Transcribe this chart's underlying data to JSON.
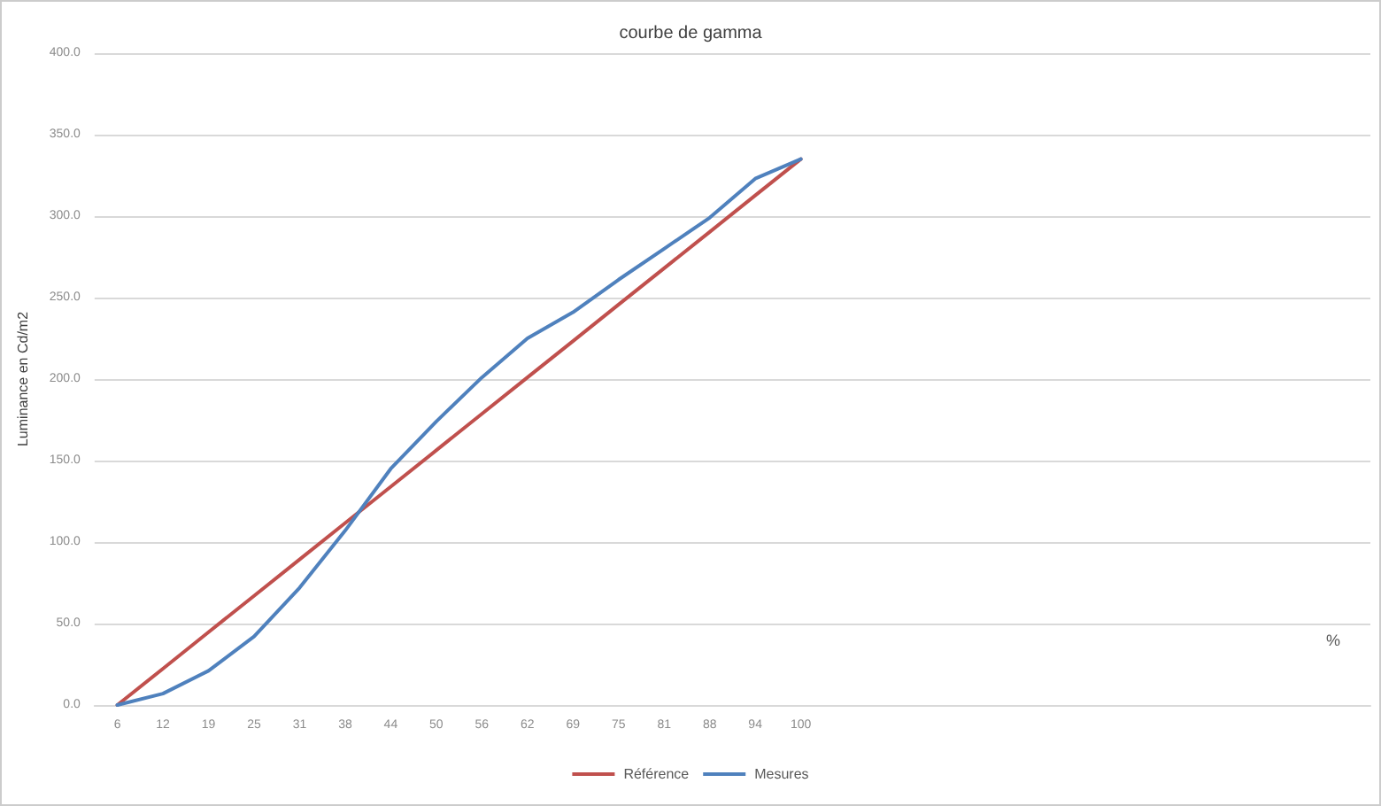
{
  "chart_data": {
    "type": "line",
    "title": "courbe de gamma",
    "ylabel": "Luminance en Cd/m2",
    "categories": [
      "6",
      "12",
      "19",
      "25",
      "31",
      "38",
      "44",
      "50",
      "56",
      "62",
      "69",
      "75",
      "81",
      "88",
      "94",
      "100",
      null,
      null,
      null,
      null,
      null,
      null,
      null,
      null,
      null,
      null,
      null,
      null
    ],
    "series": [
      {
        "name": "Référence",
        "color": "#c0504d",
        "values": [
          0,
          22.3,
          44.7,
          67,
          89.3,
          111.7,
          134,
          156.3,
          178.7,
          201,
          223.3,
          245.7,
          268,
          290.3,
          312.7,
          335,
          null,
          null,
          null,
          null,
          null,
          null,
          null,
          null,
          null,
          null,
          null,
          null
        ]
      },
      {
        "name": "Mesures",
        "color": "#4f81bd",
        "values": [
          0,
          7,
          21,
          42,
          72,
          107,
          145,
          174,
          201,
          225,
          241,
          261,
          280,
          299,
          323,
          335,
          null,
          null,
          null,
          null,
          null,
          null,
          null,
          null,
          null,
          null,
          null,
          null
        ]
      }
    ],
    "ylim": [
      0,
      400
    ],
    "yticks": [
      {
        "value": 0,
        "label": "0.0"
      },
      {
        "value": 50,
        "label": "50.0"
      },
      {
        "value": 100,
        "label": "100.0"
      },
      {
        "value": 150,
        "label": "150.0"
      },
      {
        "value": 200,
        "label": "200.0"
      },
      {
        "value": 250,
        "label": "250.0"
      },
      {
        "value": 300,
        "label": "300.0"
      },
      {
        "value": 350,
        "label": "350.0"
      },
      {
        "value": 400,
        "label": "400.0"
      }
    ],
    "annotations": [
      "%"
    ],
    "grid": "y",
    "legend": "bottom",
    "marker": "none",
    "line_style": "solid"
  }
}
